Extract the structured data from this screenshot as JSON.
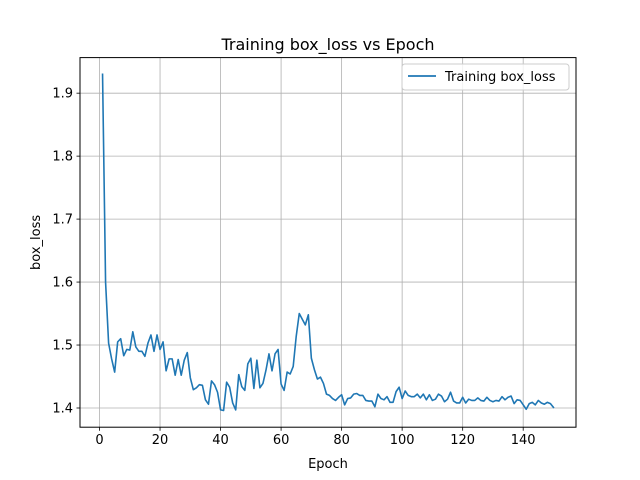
{
  "chart_data": {
    "type": "line",
    "title": "Training box_loss vs Epoch",
    "xlabel": "Epoch",
    "ylabel": "box_loss",
    "xlim": [
      -6.45,
      157.45
    ],
    "ylim": [
      1.3695,
      1.9565
    ],
    "xticks": [
      0,
      20,
      40,
      60,
      80,
      100,
      120,
      140
    ],
    "yticks": [
      1.4,
      1.5,
      1.6,
      1.7,
      1.8,
      1.9
    ],
    "grid": true,
    "legend": "top-right",
    "line_color": "#1f77b4",
    "series": [
      {
        "name": "Training box_loss",
        "x": [
          1,
          2,
          3,
          4,
          5,
          6,
          7,
          8,
          9,
          10,
          11,
          12,
          13,
          14,
          15,
          16,
          17,
          18,
          19,
          20,
          21,
          22,
          23,
          24,
          25,
          26,
          27,
          28,
          29,
          30,
          31,
          32,
          33,
          34,
          35,
          36,
          37,
          38,
          39,
          40,
          41,
          42,
          43,
          44,
          45,
          46,
          47,
          48,
          49,
          50,
          51,
          52,
          53,
          54,
          55,
          56,
          57,
          58,
          59,
          60,
          61,
          62,
          63,
          64,
          65,
          66,
          67,
          68,
          69,
          70,
          71,
          72,
          73,
          74,
          75,
          76,
          77,
          78,
          79,
          80,
          81,
          82,
          83,
          84,
          85,
          86,
          87,
          88,
          89,
          90,
          91,
          92,
          93,
          94,
          95,
          96,
          97,
          98,
          99,
          100,
          101,
          102,
          103,
          104,
          105,
          106,
          107,
          108,
          109,
          110,
          111,
          112,
          113,
          114,
          115,
          116,
          117,
          118,
          119,
          120,
          121,
          122,
          123,
          124,
          125,
          126,
          127,
          128,
          129,
          130,
          131,
          132,
          133,
          134,
          135,
          136,
          137,
          138,
          139,
          140,
          141,
          142,
          143,
          144,
          145,
          146,
          147,
          148,
          149,
          150
        ],
        "values": [
          1.93,
          1.6,
          1.503,
          1.478,
          1.457,
          1.505,
          1.51,
          1.483,
          1.493,
          1.492,
          1.521,
          1.497,
          1.49,
          1.49,
          1.482,
          1.503,
          1.516,
          1.49,
          1.516,
          1.493,
          1.505,
          1.459,
          1.478,
          1.478,
          1.452,
          1.477,
          1.452,
          1.476,
          1.488,
          1.448,
          1.429,
          1.432,
          1.437,
          1.436,
          1.413,
          1.406,
          1.443,
          1.437,
          1.425,
          1.397,
          1.396,
          1.441,
          1.433,
          1.408,
          1.397,
          1.453,
          1.434,
          1.428,
          1.47,
          1.479,
          1.431,
          1.476,
          1.432,
          1.439,
          1.46,
          1.486,
          1.459,
          1.486,
          1.493,
          1.438,
          1.428,
          1.457,
          1.454,
          1.466,
          1.514,
          1.55,
          1.541,
          1.532,
          1.548,
          1.479,
          1.461,
          1.446,
          1.449,
          1.439,
          1.422,
          1.42,
          1.415,
          1.412,
          1.417,
          1.421,
          1.405,
          1.415,
          1.416,
          1.422,
          1.423,
          1.42,
          1.42,
          1.412,
          1.411,
          1.411,
          1.402,
          1.422,
          1.415,
          1.413,
          1.418,
          1.409,
          1.409,
          1.426,
          1.433,
          1.415,
          1.427,
          1.42,
          1.418,
          1.418,
          1.422,
          1.416,
          1.422,
          1.413,
          1.421,
          1.412,
          1.414,
          1.422,
          1.419,
          1.41,
          1.414,
          1.425,
          1.411,
          1.408,
          1.408,
          1.417,
          1.408,
          1.414,
          1.412,
          1.412,
          1.416,
          1.412,
          1.411,
          1.417,
          1.412,
          1.41,
          1.412,
          1.411,
          1.418,
          1.413,
          1.417,
          1.419,
          1.407,
          1.413,
          1.412,
          1.405,
          1.398,
          1.407,
          1.409,
          1.405,
          1.412,
          1.408,
          1.406,
          1.409,
          1.407,
          1.401
        ]
      }
    ]
  }
}
